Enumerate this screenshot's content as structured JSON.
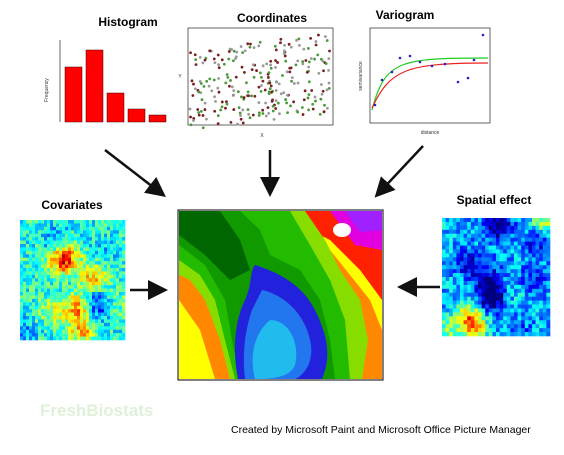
{
  "panels": {
    "histogram": {
      "title": "Histogram",
      "ylabel": "Frequency"
    },
    "coordinates": {
      "title": "Coordinates",
      "xlabel": "X",
      "ylabel": "Y"
    },
    "variogram": {
      "title": "Variogram",
      "xlabel": "distance",
      "ylabel": "semivariance"
    },
    "covariates": {
      "title": "Covariates"
    },
    "spatial_effect": {
      "title": "Spatial effect"
    }
  },
  "watermark": "FreshBiostats",
  "credit": "Created by Microsoft Paint and Microsoft Office Picture Manager"
}
